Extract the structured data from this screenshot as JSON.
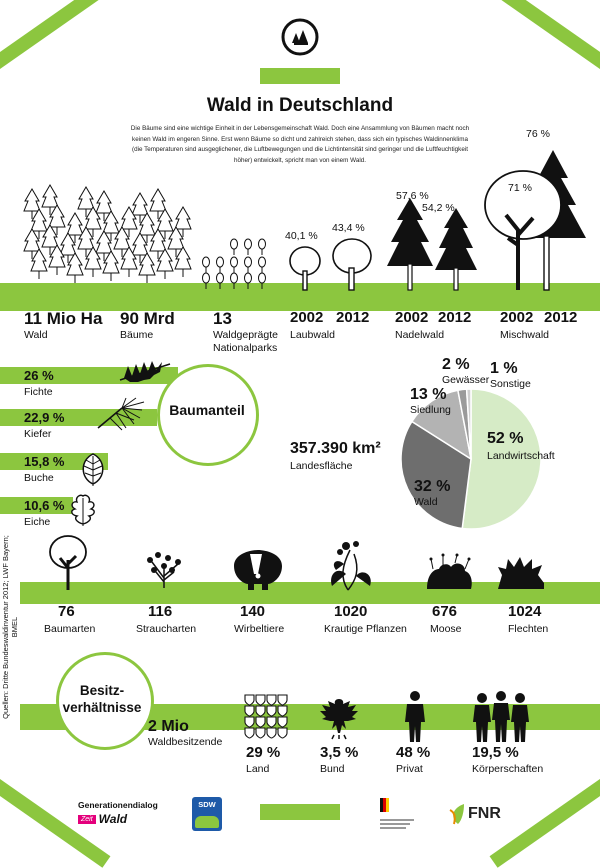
{
  "title": "Wald in Deutschland",
  "intro": "Die Bäume sind eine wichtige Einheit in der Lebensgemeinschaft Wald. Doch eine Ansammlung von Bäumen macht noch keinen Wald im engeren Sinne. Erst wenn Bäume so dicht und zahlreich stehen, dass sich ein typisches Waldinnenklima (die Temperaturen sind ausgeglichener, die Luftbewegungen und die Lichtintensität sind geringer und die Luftfeuchtigkeit höher) entwickelt, spricht man von einem Wald.",
  "stats": [
    {
      "value": "11 Mio Ha",
      "label": "Wald"
    },
    {
      "value": "90 Mrd",
      "label": "Bäume"
    },
    {
      "value": "13",
      "label": "Waldgeprägte Nationalparks"
    }
  ],
  "forest_types": [
    {
      "label": "Laubwald",
      "pct_2002": "40,1 %",
      "pct_2012": "43,4 %",
      "year_a": "2002",
      "year_b": "2012"
    },
    {
      "label": "Nadelwald",
      "pct_2002": "57,6 %",
      "pct_2012": "54,2 %",
      "year_a": "2002",
      "year_b": "2012"
    },
    {
      "label": "Mischwald",
      "pct_2002": "71 %",
      "pct_2012": "76 %",
      "year_a": "2002",
      "year_b": "2012"
    }
  ],
  "baumanteil": {
    "title": "Baumanteil",
    "items": [
      {
        "pct": "26 %",
        "name": "Fichte",
        "value": 26
      },
      {
        "pct": "22,9 %",
        "name": "Kiefer",
        "value": 22.9
      },
      {
        "pct": "15,8 %",
        "name": "Buche",
        "value": 15.8
      },
      {
        "pct": "10,6 %",
        "name": "Eiche",
        "value": 10.6
      }
    ]
  },
  "landesflaeche": {
    "value": "357.390 km²",
    "label": "Landesfläche",
    "slices": [
      {
        "pct": "52 %",
        "name": "Landwirtschaft",
        "value": 52,
        "color": "#d6ebc6"
      },
      {
        "pct": "32 %",
        "name": "Wald",
        "value": 32,
        "color": "#6e6e6e"
      },
      {
        "pct": "13 %",
        "name": "Siedlung",
        "value": 13,
        "color": "#b3b3b3"
      },
      {
        "pct": "2 %",
        "name": "Gewässer",
        "value": 2,
        "color": "#9a9a9a"
      },
      {
        "pct": "1 %",
        "name": "Sonstige",
        "value": 1,
        "color": "#cfcfcf"
      }
    ]
  },
  "species": [
    {
      "value": "76",
      "label": "Baumarten"
    },
    {
      "value": "116",
      "label": "Straucharten"
    },
    {
      "value": "140",
      "label": "Wirbeltiere"
    },
    {
      "value": "1020",
      "label": "Krautige Pflanzen"
    },
    {
      "value": "676",
      "label": "Moose"
    },
    {
      "value": "1024",
      "label": "Flechten"
    }
  ],
  "sources": "Quellen: Dritte Bundeswaldinventur 2012; LWF Bayern; BMEL",
  "besitz": {
    "title": "Besitz-\nverhältnisse",
    "owners_value": "2 Mio",
    "owners_label": "Waldbesitzende",
    "items": [
      {
        "pct": "29 %",
        "label": "Land"
      },
      {
        "pct": "3,5 %",
        "label": "Bund"
      },
      {
        "pct": "48 %",
        "label": "Privat"
      },
      {
        "pct": "19,5 %",
        "label": "Körperschaften"
      }
    ]
  },
  "footer": {
    "logo1_line1": "Generationendialog",
    "logo1_line2": "Zeit",
    "logo1_line3": "Wald",
    "logo2": "SDW",
    "logo4": "FNR"
  },
  "colors": {
    "accent": "#8cc63f",
    "dark": "#111111"
  }
}
